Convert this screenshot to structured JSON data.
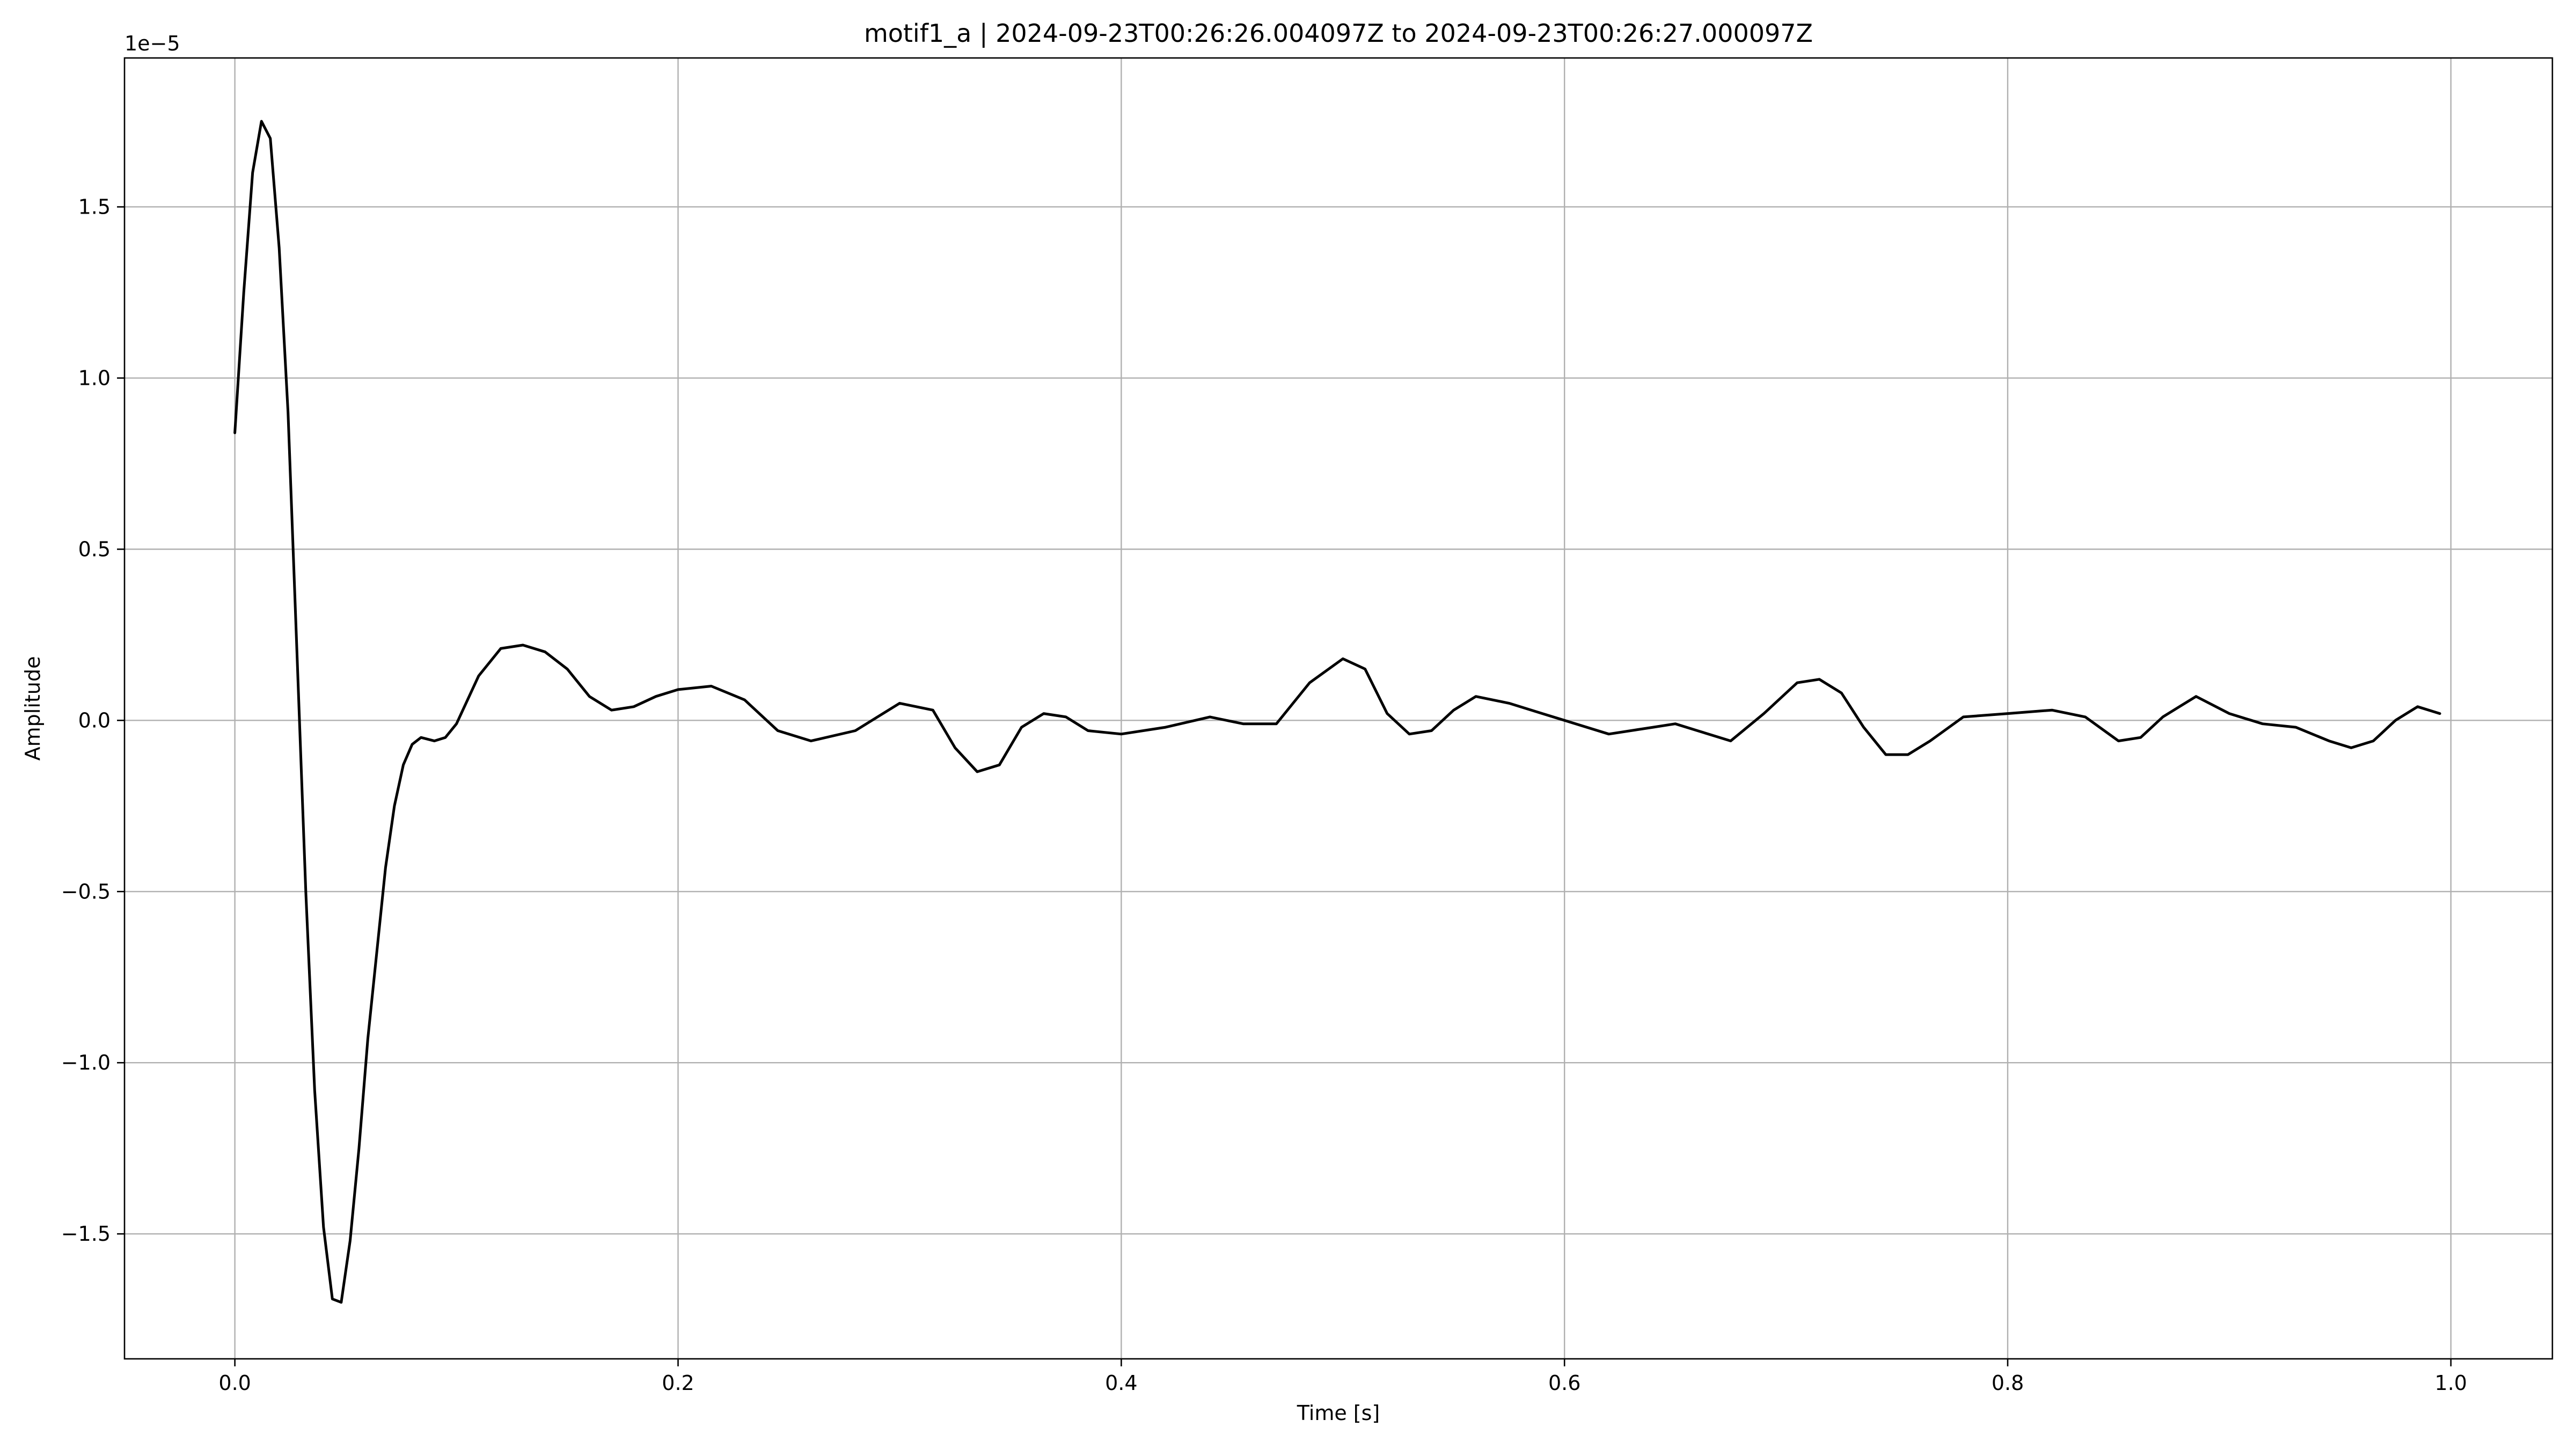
{
  "chart_data": {
    "type": "line",
    "title": "motif1_a | 2024-09-23T00:26:26.004097Z to 2024-09-23T00:26:27.000097Z",
    "xlabel": "Time [s]",
    "ylabel": "Amplitude",
    "y_offset_label": "1e−5",
    "xlim": [
      -0.0498,
      1.0458
    ],
    "ylim": [
      -1.865,
      1.935
    ],
    "y_scale_note": "values in units of 1e-5",
    "grid": true,
    "x_ticks": [
      {
        "value": 0.0,
        "label": "0.0"
      },
      {
        "value": 0.2,
        "label": "0.2"
      },
      {
        "value": 0.4,
        "label": "0.4"
      },
      {
        "value": 0.6,
        "label": "0.6"
      },
      {
        "value": 0.8,
        "label": "0.8"
      },
      {
        "value": 1.0,
        "label": "1.0"
      }
    ],
    "y_ticks": [
      {
        "value": 1.5,
        "label": "1.5"
      },
      {
        "value": 1.0,
        "label": "1.0"
      },
      {
        "value": 0.5,
        "label": "0.5"
      },
      {
        "value": 0.0,
        "label": "0.0"
      },
      {
        "value": -0.5,
        "label": "−0.5"
      },
      {
        "value": -1.0,
        "label": "−1.0"
      },
      {
        "value": -1.5,
        "label": "−1.5"
      }
    ],
    "series": [
      {
        "color": "#000000",
        "x": [
          0.0,
          0.004,
          0.008,
          0.012,
          0.016,
          0.02,
          0.024,
          0.028,
          0.032,
          0.036,
          0.04,
          0.044,
          0.048,
          0.052,
          0.056,
          0.06,
          0.064,
          0.068,
          0.072,
          0.076,
          0.08,
          0.084,
          0.09,
          0.095,
          0.1,
          0.11,
          0.12,
          0.13,
          0.14,
          0.15,
          0.16,
          0.17,
          0.18,
          0.19,
          0.2,
          0.215,
          0.23,
          0.245,
          0.26,
          0.28,
          0.3,
          0.315,
          0.325,
          0.335,
          0.345,
          0.355,
          0.365,
          0.375,
          0.385,
          0.4,
          0.42,
          0.44,
          0.455,
          0.47,
          0.485,
          0.5,
          0.51,
          0.52,
          0.53,
          0.54,
          0.55,
          0.56,
          0.575,
          0.59,
          0.6,
          0.62,
          0.64,
          0.65,
          0.66,
          0.675,
          0.69,
          0.705,
          0.715,
          0.725,
          0.735,
          0.745,
          0.755,
          0.765,
          0.78,
          0.8,
          0.82,
          0.835,
          0.85,
          0.86,
          0.87,
          0.885,
          0.9,
          0.915,
          0.93,
          0.945,
          0.955,
          0.965,
          0.975,
          0.985,
          0.995
        ],
        "y": [
          0.84,
          1.25,
          1.6,
          1.75,
          1.7,
          1.38,
          0.9,
          0.2,
          -0.5,
          -1.08,
          -1.48,
          -1.69,
          -1.7,
          -1.52,
          -1.25,
          -0.93,
          -0.68,
          -0.43,
          -0.25,
          -0.13,
          -0.07,
          -0.05,
          -0.06,
          -0.05,
          -0.01,
          0.13,
          0.21,
          0.22,
          0.2,
          0.15,
          0.07,
          0.03,
          0.04,
          0.07,
          0.09,
          0.1,
          0.06,
          -0.03,
          -0.06,
          -0.03,
          0.05,
          0.03,
          -0.08,
          -0.15,
          -0.13,
          -0.02,
          0.02,
          0.01,
          -0.03,
          -0.04,
          -0.02,
          0.01,
          -0.01,
          -0.01,
          0.11,
          0.18,
          0.15,
          0.02,
          -0.04,
          -0.03,
          0.03,
          0.07,
          0.05,
          0.02,
          0.0,
          -0.04,
          -0.02,
          -0.01,
          -0.03,
          -0.06,
          0.02,
          0.11,
          0.12,
          0.08,
          -0.02,
          -0.1,
          -0.1,
          -0.06,
          0.01,
          0.02,
          0.03,
          0.01,
          -0.06,
          -0.05,
          0.01,
          0.07,
          0.02,
          -0.01,
          -0.02,
          -0.06,
          -0.08,
          -0.06,
          0.0,
          0.04,
          0.02
        ]
      }
    ]
  }
}
